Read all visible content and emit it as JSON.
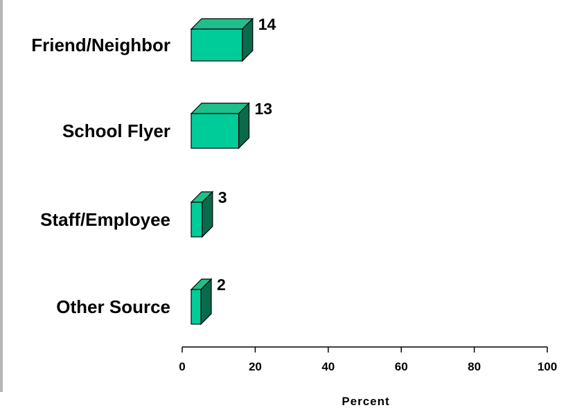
{
  "chart_data": {
    "type": "bar",
    "orientation": "horizontal",
    "style": "3d",
    "categories": [
      "Friend/Neighbor",
      "School Flyer",
      "Staff/Employee",
      "Other Source"
    ],
    "values": [
      14,
      13,
      3,
      2
    ],
    "xlabel": "Percent",
    "xlim": [
      0,
      100
    ],
    "xticks": [
      0,
      20,
      40,
      60,
      80,
      100
    ],
    "grid": false,
    "colors": {
      "bar_front": "#00cc99",
      "bar_top": "#1fbf8c",
      "bar_side": "#0a6b4c",
      "outline": "#000000"
    }
  }
}
